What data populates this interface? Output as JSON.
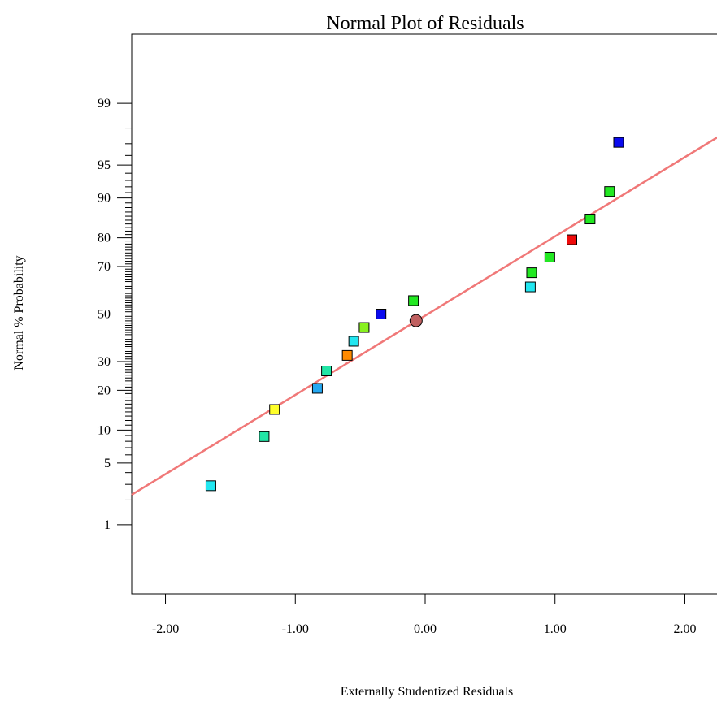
{
  "chart_data": {
    "type": "scatter",
    "title": "Normal Plot of Residuals",
    "xlabel": "Externally Studentized Residuals",
    "ylabel": "Normal % Probability",
    "xlim": [
      -2.26,
      2.26
    ],
    "ylim_percent": [
      0.1,
      99.9
    ],
    "y_scale": "normal-probability",
    "grid": false,
    "x_ticks": [
      {
        "value": -2,
        "label": "-2.00"
      },
      {
        "value": -1,
        "label": "-1.00"
      },
      {
        "value": 0,
        "label": "0.00"
      },
      {
        "value": 1,
        "label": "1.00"
      },
      {
        "value": 2,
        "label": "2.00"
      }
    ],
    "y_ticks": [
      {
        "value": 1,
        "label": "1"
      },
      {
        "value": 5,
        "label": "5"
      },
      {
        "value": 10,
        "label": "10"
      },
      {
        "value": 20,
        "label": "20"
      },
      {
        "value": 30,
        "label": "30"
      },
      {
        "value": 50,
        "label": "50"
      },
      {
        "value": 70,
        "label": "70"
      },
      {
        "value": 80,
        "label": "80"
      },
      {
        "value": 90,
        "label": "90"
      },
      {
        "value": 95,
        "label": "95"
      },
      {
        "value": 99,
        "label": "99"
      }
    ],
    "fit_line": {
      "color": "#f07878",
      "points": [
        [
          -2.26,
          2.3
        ],
        [
          2.26,
          97.5
        ]
      ]
    },
    "points": [
      {
        "x": -1.65,
        "y": 2.9,
        "color": "#22e6f0",
        "shape": "square"
      },
      {
        "x": -1.24,
        "y": 8.8,
        "color": "#22e6a6",
        "shape": "square"
      },
      {
        "x": -1.16,
        "y": 14.6,
        "color": "#ffff2a",
        "shape": "square"
      },
      {
        "x": -0.83,
        "y": 20.6,
        "color": "#24a8f2",
        "shape": "square"
      },
      {
        "x": -0.76,
        "y": 26.5,
        "color": "#22e6a6",
        "shape": "square"
      },
      {
        "x": -0.6,
        "y": 32.4,
        "color": "#ff8a00",
        "shape": "square"
      },
      {
        "x": -0.55,
        "y": 38.2,
        "color": "#22e6f0",
        "shape": "square"
      },
      {
        "x": -0.47,
        "y": 44.1,
        "color": "#88f020",
        "shape": "square"
      },
      {
        "x": -0.07,
        "y": 47.1,
        "color": "#c06060",
        "shape": "circle"
      },
      {
        "x": -0.34,
        "y": 50.0,
        "color": "#0a0aef",
        "shape": "square"
      },
      {
        "x": -0.09,
        "y": 55.9,
        "color": "#22e822",
        "shape": "square"
      },
      {
        "x": 0.81,
        "y": 61.8,
        "color": "#22e6f0",
        "shape": "square"
      },
      {
        "x": 0.82,
        "y": 67.6,
        "color": "#22e822",
        "shape": "square"
      },
      {
        "x": 0.96,
        "y": 73.5,
        "color": "#22e822",
        "shape": "square"
      },
      {
        "x": 1.13,
        "y": 79.4,
        "color": "#ee0a0a",
        "shape": "square"
      },
      {
        "x": 1.27,
        "y": 85.3,
        "color": "#22e822",
        "shape": "square"
      },
      {
        "x": 1.42,
        "y": 91.2,
        "color": "#22e822",
        "shape": "square"
      },
      {
        "x": 1.49,
        "y": 97.1,
        "color": "#0a0aef",
        "shape": "square"
      }
    ]
  }
}
